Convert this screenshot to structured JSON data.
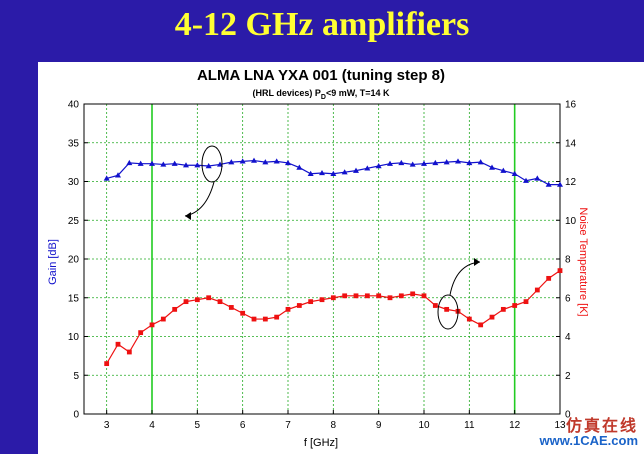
{
  "slide": {
    "title": "4-12 GHz amplifiers"
  },
  "watermark": {
    "cn": "仿真在线",
    "url": "www.1CAE.com"
  },
  "chart_data": {
    "type": "line",
    "title": "ALMA LNA YXA 001 (tuning step 8)",
    "subtitle_pre": "(HRL devices)   P",
    "subtitle_sub": "D",
    "subtitle_post": "<9 mW, T=14 K",
    "xlabel": "f [GHz]",
    "ylabel_left": "Gain [dB]",
    "ylabel_right": "Noise Temperature [K]",
    "xlim": [
      2.5,
      13.0
    ],
    "ylim_left": [
      0,
      40
    ],
    "ylim_right": [
      0,
      16
    ],
    "x_ticks": [
      3,
      4,
      5,
      6,
      7,
      8,
      9,
      10,
      11,
      12,
      13
    ],
    "y_ticks_left": [
      0,
      5,
      10,
      15,
      20,
      25,
      30,
      35,
      40
    ],
    "y_ticks_right": [
      0,
      2,
      4,
      6,
      8,
      10,
      12,
      14,
      16
    ],
    "grid": true,
    "band_lines_x": [
      4,
      12
    ],
    "series": [
      {
        "axis": "left",
        "color": "#1111cc",
        "marker": "triangle",
        "x": [
          3.0,
          3.25,
          3.5,
          3.75,
          4.0,
          4.25,
          4.5,
          4.75,
          5.0,
          5.25,
          5.5,
          5.75,
          6.0,
          6.25,
          6.5,
          6.75,
          7.0,
          7.25,
          7.5,
          7.75,
          8.0,
          8.25,
          8.5,
          8.75,
          9.0,
          9.25,
          9.5,
          9.75,
          10.0,
          10.25,
          10.5,
          10.75,
          11.0,
          11.25,
          11.5,
          11.75,
          12.0,
          12.25,
          12.5,
          12.75,
          13.0
        ],
        "y": [
          30.4,
          30.8,
          32.4,
          32.3,
          32.3,
          32.2,
          32.3,
          32.1,
          32.1,
          32.0,
          32.2,
          32.5,
          32.6,
          32.7,
          32.5,
          32.6,
          32.4,
          31.8,
          31.0,
          31.1,
          31.0,
          31.2,
          31.4,
          31.7,
          32.0,
          32.3,
          32.4,
          32.2,
          32.3,
          32.4,
          32.5,
          32.6,
          32.4,
          32.5,
          31.8,
          31.4,
          31.0,
          30.1,
          30.4,
          29.6,
          29.6
        ]
      },
      {
        "axis": "right",
        "color": "#ee1111",
        "marker": "square",
        "x": [
          3.0,
          3.25,
          3.5,
          3.75,
          4.0,
          4.25,
          4.5,
          4.75,
          5.0,
          5.25,
          5.5,
          5.75,
          6.0,
          6.25,
          6.5,
          6.75,
          7.0,
          7.25,
          7.5,
          7.75,
          8.0,
          8.25,
          8.5,
          8.75,
          9.0,
          9.25,
          9.5,
          9.75,
          10.0,
          10.25,
          10.5,
          10.75,
          11.0,
          11.25,
          11.5,
          11.75,
          12.0,
          12.25,
          12.5,
          12.75,
          13.0
        ],
        "y": [
          2.6,
          3.6,
          3.2,
          4.2,
          4.6,
          4.9,
          5.4,
          5.8,
          5.9,
          6.0,
          5.8,
          5.5,
          5.2,
          4.9,
          4.9,
          5.0,
          5.4,
          5.6,
          5.8,
          5.9,
          6.0,
          6.1,
          6.1,
          6.1,
          6.1,
          6.0,
          6.1,
          6.2,
          6.1,
          5.6,
          5.4,
          5.3,
          4.9,
          4.6,
          5.0,
          5.4,
          5.6,
          5.8,
          6.4,
          7.0,
          7.4
        ]
      }
    ]
  }
}
